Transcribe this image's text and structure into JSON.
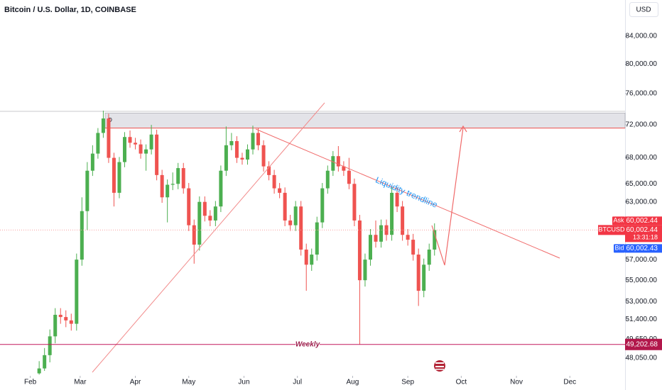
{
  "chart_data": {
    "type": "candlestick",
    "title": "Bitcoin / U.S. Dollar, 1D, COINBASE",
    "currency": "USD",
    "log_scale": true,
    "up_color": "#4caf50",
    "down_color": "#ef5350",
    "xlim": [
      15,
      366
    ],
    "xticks": [
      {
        "value": 32,
        "label": "Feb"
      },
      {
        "value": 60,
        "label": "Mar"
      },
      {
        "value": 91,
        "label": "Apr"
      },
      {
        "value": 121,
        "label": "May"
      },
      {
        "value": 152,
        "label": "Jun"
      },
      {
        "value": 182,
        "label": "Jul"
      },
      {
        "value": 213,
        "label": "Aug"
      },
      {
        "value": 244,
        "label": "Sep"
      },
      {
        "value": 274,
        "label": "Oct"
      },
      {
        "value": 305,
        "label": "Nov"
      },
      {
        "value": 335,
        "label": "Dec"
      }
    ],
    "ylim": [
      46600,
      89400
    ],
    "yticks": [
      {
        "value": 84000,
        "label": "84,000.00"
      },
      {
        "value": 80000,
        "label": "80,000.00"
      },
      {
        "value": 76000,
        "label": "76,000.00"
      },
      {
        "value": 72000,
        "label": "72,000.00"
      },
      {
        "value": 68000,
        "label": "68,000.00"
      },
      {
        "value": 65000,
        "label": "65,000.00"
      },
      {
        "value": 63000,
        "label": "63,000.00"
      },
      {
        "value": 57000,
        "label": "57,000.00"
      },
      {
        "value": 55000,
        "label": "55,000.00"
      },
      {
        "value": 53000,
        "label": "53,000.00"
      },
      {
        "value": 51400,
        "label": "51,400.00"
      },
      {
        "value": 49650,
        "label": "49,650.00"
      },
      {
        "value": 48050,
        "label": "48,050.00"
      }
    ],
    "x": [
      37,
      40,
      43,
      46,
      49,
      52,
      55,
      58,
      61,
      64,
      67,
      70,
      73,
      76,
      79,
      82,
      85,
      88,
      91,
      94,
      97,
      100,
      103,
      106,
      109,
      112,
      115,
      118,
      121,
      124,
      127,
      130,
      133,
      136,
      139,
      142,
      145,
      148,
      151,
      154,
      157,
      160,
      163,
      166,
      169,
      172,
      175,
      178,
      181,
      184,
      187,
      190,
      193,
      196,
      199,
      202,
      205,
      208,
      211,
      214,
      217,
      220,
      223,
      226,
      229,
      232,
      235,
      238,
      241,
      244,
      247,
      250,
      253,
      256,
      259
    ],
    "open": [
      46800,
      47200,
      48300,
      49900,
      51800,
      51600,
      51300,
      51000,
      57000,
      62000,
      66500,
      68500,
      71000,
      72800,
      68000,
      64000,
      67500,
      70500,
      69800,
      69600,
      68500,
      69000,
      70800,
      66000,
      63500,
      64900,
      65000,
      66800,
      64500,
      60500,
      58500,
      63000,
      61500,
      61000,
      62500,
      66500,
      69500,
      70000,
      68000,
      67800,
      69000,
      71000,
      69500,
      67000,
      66000,
      64500,
      64000,
      61000,
      60500,
      62500,
      58000,
      56500,
      57500,
      60800,
      64500,
      66500,
      68200,
      67000,
      66500,
      65000,
      61000,
      55000,
      57000,
      59500,
      58800,
      60500,
      59500,
      64000,
      62500,
      59500,
      59000,
      57500,
      54000,
      56500,
      58000
    ],
    "high": [
      47800,
      48900,
      50500,
      52400,
      52400,
      52200,
      51900,
      57600,
      63500,
      67500,
      69500,
      71600,
      73800,
      73400,
      68600,
      68100,
      71100,
      71300,
      70400,
      70200,
      69600,
      72000,
      71400,
      66600,
      65500,
      66300,
      67400,
      67400,
      65100,
      61100,
      63600,
      63600,
      62100,
      63100,
      67100,
      71800,
      71000,
      70600,
      68600,
      69600,
      71900,
      71600,
      70100,
      67600,
      66600,
      65100,
      64600,
      61600,
      63100,
      63100,
      58600,
      58100,
      61400,
      65100,
      67100,
      68800,
      69400,
      67600,
      68000,
      65600,
      61600,
      57600,
      60100,
      61000,
      61100,
      61100,
      64600,
      64600,
      63100,
      60100,
      59600,
      58100,
      57100,
      58600,
      60700
    ],
    "low": [
      46700,
      47000,
      47700,
      49300,
      51000,
      50700,
      50400,
      50400,
      56400,
      60000,
      65900,
      67900,
      70400,
      67400,
      62500,
      63400,
      66900,
      69200,
      69000,
      67900,
      66500,
      68400,
      65400,
      62900,
      60800,
      64300,
      64400,
      63900,
      59900,
      56600,
      57900,
      60900,
      60400,
      60400,
      61900,
      65900,
      68900,
      67400,
      67200,
      67200,
      68400,
      68900,
      66400,
      65400,
      63900,
      63400,
      60400,
      59900,
      59900,
      57400,
      54000,
      55900,
      56900,
      60200,
      63900,
      65900,
      66400,
      65900,
      64400,
      60400,
      49200,
      54400,
      56400,
      58200,
      58200,
      58900,
      58900,
      61900,
      58900,
      58400,
      56900,
      52600,
      53400,
      55900,
      57400
    ],
    "close": [
      47200,
      48300,
      49900,
      51800,
      51600,
      51300,
      51000,
      57000,
      62000,
      66500,
      68500,
      71000,
      72800,
      68000,
      64000,
      67500,
      70500,
      69800,
      69600,
      68500,
      69000,
      70800,
      66000,
      63500,
      64900,
      65000,
      66800,
      64500,
      60500,
      58500,
      63000,
      61500,
      61000,
      62500,
      66500,
      69500,
      70000,
      68000,
      67800,
      69000,
      71000,
      69500,
      67000,
      66000,
      64500,
      64000,
      61000,
      60500,
      62500,
      58000,
      56500,
      57500,
      60800,
      64500,
      66500,
      68200,
      67000,
      66500,
      65000,
      61000,
      55000,
      57000,
      59500,
      58800,
      60500,
      59500,
      64000,
      62500,
      59500,
      59000,
      57500,
      54000,
      56500,
      58000,
      60000
    ],
    "zone": {
      "label": "D",
      "low": 71600,
      "high": 73500
    },
    "trendline_label": "Liquidity trendline",
    "weekly_level": {
      "name": "Weekly",
      "value": 49202.68,
      "label": "49,202.68"
    },
    "last_price": {
      "value": 60002.44,
      "label": "60,002.44"
    },
    "ask": {
      "name": "Ask",
      "value": 60002.44,
      "label": "60,002.44"
    },
    "symbol": "BTCUSD",
    "countdown": "13:31:18",
    "bid": {
      "name": "Bid",
      "value": 60002.43,
      "label": "60,002.43"
    }
  }
}
